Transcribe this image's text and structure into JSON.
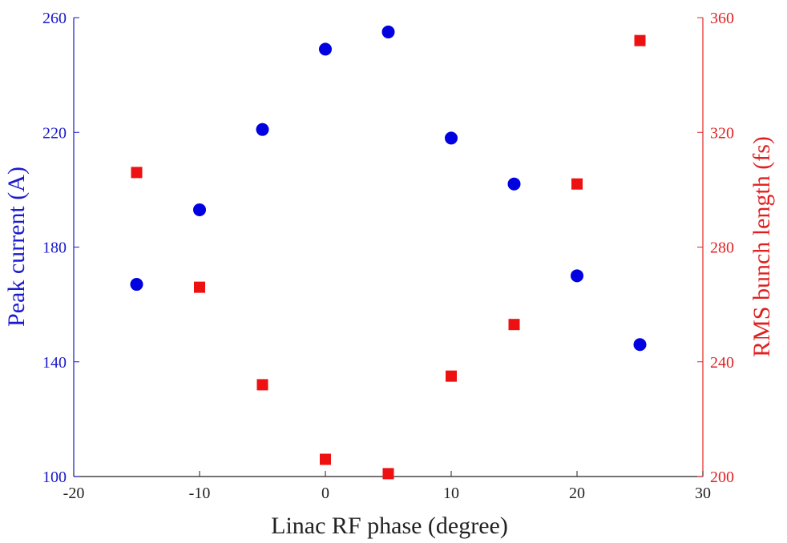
{
  "chart_data": {
    "type": "scatter",
    "xlabel": "Linac RF phase (degree)",
    "ylabel_left": "Peak current (A)",
    "ylabel_right": "RMS bunch length (fs)",
    "xlim": [
      -20,
      30
    ],
    "ylim_left": [
      100,
      260
    ],
    "ylim_right": [
      200,
      360
    ],
    "xticks": [
      -20,
      -10,
      0,
      10,
      20,
      30
    ],
    "yticks_left": [
      100,
      140,
      180,
      220,
      260
    ],
    "yticks_right": [
      200,
      240,
      280,
      320,
      360
    ],
    "grid": false,
    "series": [
      {
        "axis": "left",
        "marker": "circle",
        "color": "#0000e0",
        "x": [
          -15,
          -10,
          -5,
          0,
          5,
          10,
          15,
          20,
          25
        ],
        "y": [
          167,
          193,
          221,
          249,
          255,
          218,
          202,
          170,
          146
        ]
      },
      {
        "axis": "right",
        "marker": "square",
        "color": "#ee1111",
        "x": [
          -15,
          -10,
          -5,
          0,
          5,
          10,
          15,
          20,
          25
        ],
        "y": [
          306,
          266,
          232,
          206,
          201,
          235,
          253,
          302,
          352
        ]
      }
    ]
  },
  "colors": {
    "left_axis": "#1a1acc",
    "right_axis": "#e02020",
    "bottom_axis": "#222222"
  }
}
